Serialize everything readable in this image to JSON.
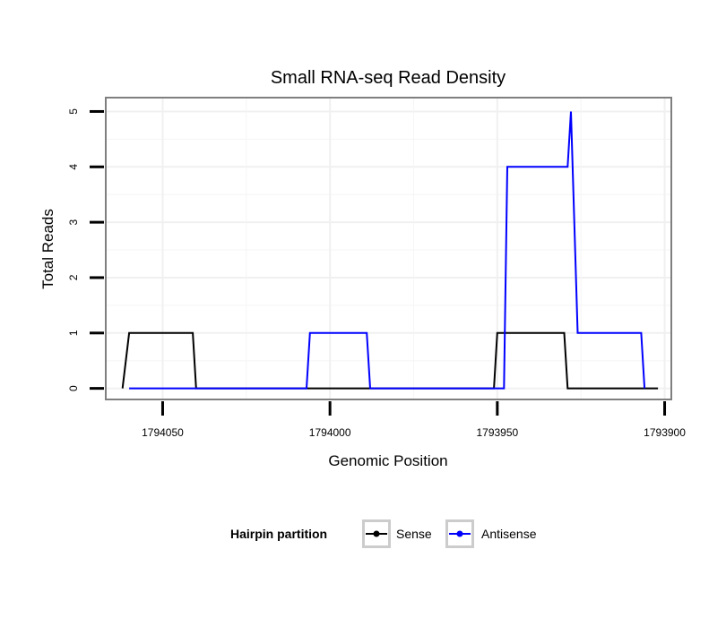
{
  "chart_data": {
    "type": "line",
    "title": "Small RNA-seq Read Density",
    "xlabel": "Genomic Position",
    "ylabel": "Total Reads",
    "x_reversed": true,
    "xlim": [
      1794067,
      1793898
    ],
    "ylim": [
      -0.2,
      5.25
    ],
    "x_ticks": [
      1794050,
      1794000,
      1793950,
      1793900
    ],
    "x_tick_labels": [
      "1794050",
      "1794000",
      "1793950",
      "1793900"
    ],
    "y_ticks": [
      0,
      1,
      2,
      3,
      4,
      5
    ],
    "y_tick_labels": [
      "0",
      "1",
      "2",
      "3",
      "4",
      "5"
    ],
    "grid": true,
    "legend_position": "bottom",
    "legend_title": "Hairpin partition",
    "series": [
      {
        "name": "Sense",
        "color": "#000000",
        "x": [
          1794062,
          1794060,
          1794041,
          1794040,
          1793951,
          1793950,
          1793930,
          1793929,
          1793902
        ],
        "y": [
          0,
          1,
          1,
          0,
          0,
          1,
          1,
          0,
          0
        ]
      },
      {
        "name": "Antisense",
        "color": "#0000ff",
        "x": [
          1794060,
          1794007,
          1794006,
          1793989,
          1793988,
          1793948,
          1793947,
          1793929,
          1793928,
          1793926,
          1793925,
          1793907,
          1793906
        ],
        "y": [
          0,
          0,
          1,
          1,
          0,
          0,
          4,
          4,
          5,
          1,
          1,
          1,
          0
        ]
      }
    ]
  }
}
